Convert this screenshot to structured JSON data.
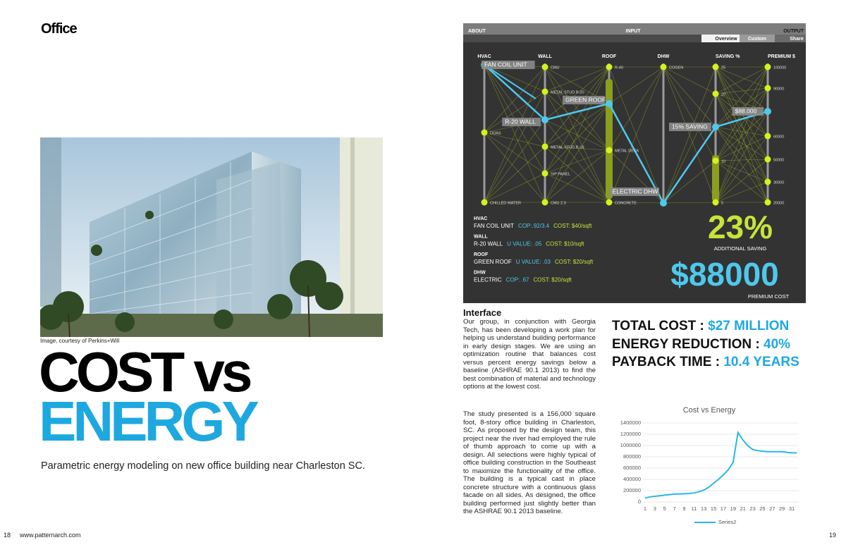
{
  "left_page": {
    "section": "Office",
    "image_caption": "Image, courtesy of Perkins+Will",
    "headline_1": "COST vs",
    "headline_2": "ENERGY",
    "subtitle": "Parametric energy modeling on new office building near Charleston SC."
  },
  "dashboard": {
    "nav": {
      "about": "ABOUT",
      "input": "INPUT",
      "output": "OUTPUT"
    },
    "tabs": [
      "Overview",
      "Custom",
      "Share"
    ],
    "axes": [
      {
        "title": "HVAC",
        "nodes": [
          "FAN COIL UNIT",
          "DOAS",
          "CHILLED WATER"
        ]
      },
      {
        "title": "WALL",
        "nodes": [
          "CMU",
          "METAL STUD R-20",
          "R-20 WALL",
          "METAL STUD R-16",
          "SIP PANEL",
          "CMU 2.3"
        ]
      },
      {
        "title": "ROOF",
        "nodes": [
          "R-40",
          "GREEN ROOF",
          "METAL DECK",
          "CONCRETE"
        ]
      },
      {
        "title": "DHW",
        "nodes": [
          "COGEN",
          "ELECTRIC DHW"
        ]
      },
      {
        "title": "SAVING %",
        "nodes": [
          "25",
          "20",
          "15% SAVING",
          "10",
          "5"
        ]
      },
      {
        "title": "PREMIUM $",
        "nodes": [
          "100000",
          "90000",
          "$88,000",
          "60000",
          "50000",
          "30000",
          "20000"
        ]
      }
    ],
    "selection": [
      {
        "category": "HVAC",
        "item": "FAN COIL UNIT",
        "metric": "COP:.92/3.4",
        "cost": "COST: $40/sqft"
      },
      {
        "category": "WALL",
        "item": "R-20 WALL",
        "metric": "U VALUE: .05",
        "cost": "COST: $10/sqft"
      },
      {
        "category": "ROOF",
        "item": "GREEN ROOF",
        "metric": "U VALUE: .03",
        "cost": "COST: $20/sqft"
      },
      {
        "category": "DHW",
        "item": "ELECTRIC",
        "metric": "COP: .67",
        "cost": "COST: $20/sqft"
      }
    ],
    "saving": "23%",
    "saving_label": "ADDITIONAL SAVING",
    "premium": "$88000",
    "premium_label": "PREMIUM COST"
  },
  "interface": {
    "heading": "Interface",
    "paragraphs": [
      "Our group, in conjunction with Georgia Tech, has been developing a work plan for helping us understand building performance in early design stages. We are using an optimization routine that balances cost versus percent energy savings below a baseline (ASHRAE 90.1 2013) to find the best combination of material and technology options at the lowest cost.",
      "The study presented is a 156,000 square foot, 8-story office building in Charleston, SC.  As proposed by the design team, this project near the river had employed the rule of thumb approach to come up with a design.  All selections were highly typical of office building construction in the Southeast to maximize the functionality of the office. The building is a typical cast in place concrete structure with a continuous glass facade on all sides.  As designed, the office building performed just slightly better than the ASHRAE 90.1 2013 baseline."
    ]
  },
  "summary": [
    {
      "label": "TOTAL COST :",
      "value": "$27 MILLION"
    },
    {
      "label": "ENERGY REDUCTION :",
      "value": "40%"
    },
    {
      "label": "PAYBACK TIME :",
      "value": "10.4 YEARS"
    }
  ],
  "chart_data": {
    "type": "line",
    "title": "Cost vs Energy",
    "categories": [
      1,
      null,
      3,
      null,
      5,
      null,
      7,
      null,
      9,
      null,
      11,
      null,
      13,
      null,
      15,
      null,
      17,
      null,
      19,
      null,
      21,
      null,
      23,
      null,
      25,
      null,
      27,
      null,
      29,
      null,
      31,
      null
    ],
    "series": [
      {
        "name": "Series2",
        "color": "#29b6e8",
        "values": [
          70000,
          90000,
          100000,
          110000,
          120000,
          130000,
          140000,
          140000,
          145000,
          150000,
          160000,
          180000,
          210000,
          260000,
          330000,
          400000,
          480000,
          570000,
          700000,
          1230000,
          1100000,
          1000000,
          930000,
          910000,
          900000,
          890000,
          890000,
          890000,
          890000,
          880000,
          870000,
          870000
        ]
      }
    ],
    "ylim": [
      0,
      1400000
    ],
    "yticks": [
      0,
      200000,
      400000,
      600000,
      800000,
      1000000,
      1200000,
      1400000
    ],
    "grid": true,
    "legend": "bottom"
  },
  "footer": {
    "left_page_number": "18",
    "website": "www.patternarch.com",
    "right_page_number": "19"
  }
}
